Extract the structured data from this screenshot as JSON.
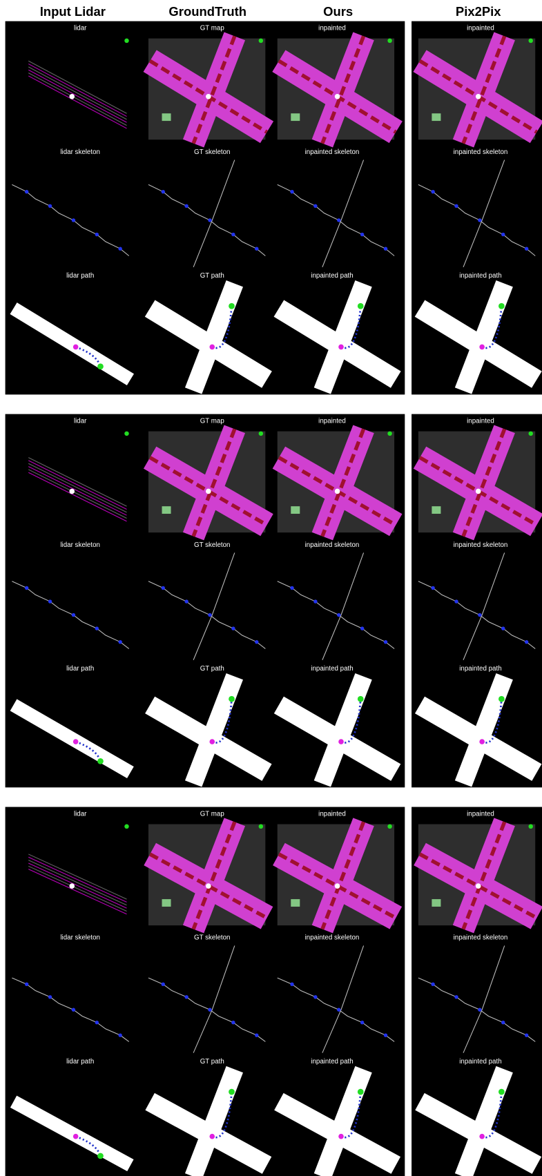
{
  "headers": [
    "Input Lidar",
    "GroundTruth",
    "Ours",
    "Pix2Pix"
  ],
  "groups": [
    {
      "rows": [
        [
          "lidar",
          "GT map",
          "inpainted",
          "inpainted"
        ],
        [
          "lidar skeleton",
          "GT skeleton",
          "inpainted skeleton",
          "inpainted skeleton"
        ],
        [
          "lidar path",
          "GT path",
          "inpainted path",
          "inpainted path"
        ]
      ]
    },
    {
      "rows": [
        [
          "lidar",
          "GT map",
          "inpainted",
          "inpainted"
        ],
        [
          "lidar skeleton",
          "GT skeleton",
          "inpainted skeleton",
          "inpainted skeleton"
        ],
        [
          "lidar path",
          "GT path",
          "inpainted path",
          "inpainted path"
        ]
      ]
    },
    {
      "rows": [
        [
          "lidar",
          "GT map",
          "inpainted",
          "inpainted"
        ],
        [
          "lidar skeleton",
          "GT skeleton",
          "inpainted skeleton",
          "inpainted skeleton"
        ],
        [
          "lidar path",
          "GT path",
          "inpainted path",
          "inpainted path"
        ]
      ]
    }
  ]
}
